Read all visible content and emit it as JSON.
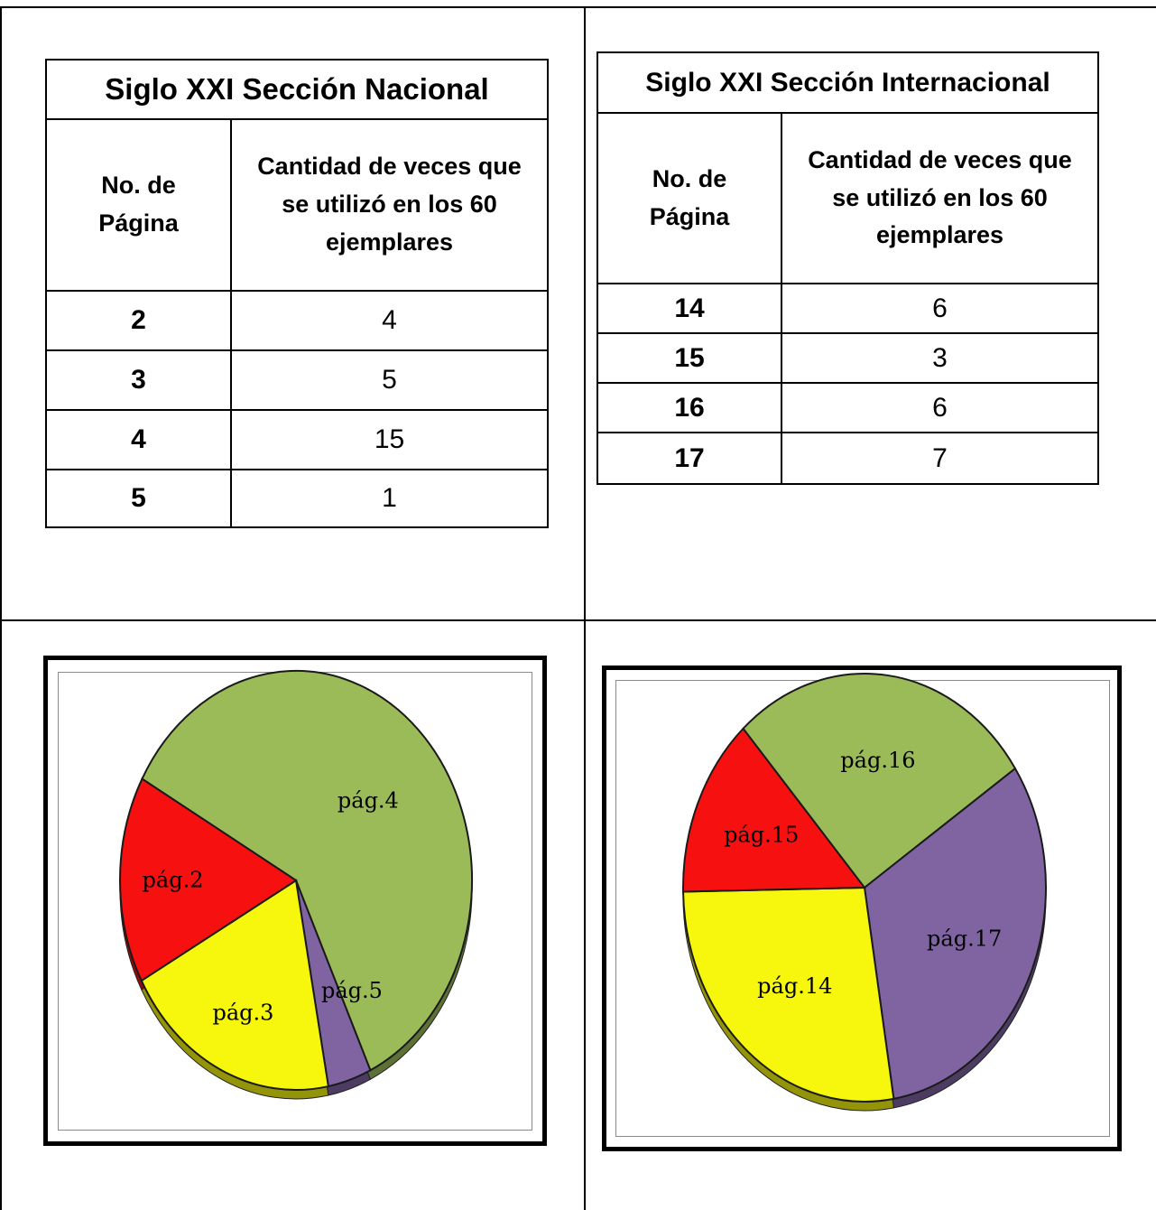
{
  "tables": [
    {
      "title": "Siglo XXI Sección Nacional",
      "col_page": "No. de Página",
      "col_count": "Cantidad de veces que se utilizó en los 60 ejemplares",
      "rows": [
        {
          "page": "2",
          "count": "4"
        },
        {
          "page": "3",
          "count": "5"
        },
        {
          "page": "4",
          "count": "15"
        },
        {
          "page": "5",
          "count": "1"
        }
      ]
    },
    {
      "title": "Siglo XXI Sección Internacional",
      "col_page": "No. de Página",
      "col_count": "Cantidad de veces que se utilizó en los 60 ejemplares",
      "rows": [
        {
          "page": "14",
          "count": "6"
        },
        {
          "page": "15",
          "count": "3"
        },
        {
          "page": "16",
          "count": "6"
        },
        {
          "page": "17",
          "count": "7"
        }
      ]
    }
  ],
  "chart_data": [
    {
      "type": "pie",
      "slices": [
        {
          "label": "pág.4",
          "value": 15,
          "color": "#9bbb59"
        },
        {
          "label": "pág.5",
          "value": 1,
          "color": "#8064a2"
        },
        {
          "label": "pág.3",
          "value": 5,
          "color": "#f7f70e"
        },
        {
          "label": "pág.2",
          "value": 4,
          "color": "#f71010"
        }
      ]
    },
    {
      "type": "pie",
      "slices": [
        {
          "label": "pág.16",
          "value": 6,
          "color": "#9bbb59"
        },
        {
          "label": "pág.17",
          "value": 7,
          "color": "#8064a2"
        },
        {
          "label": "pág.14",
          "value": 6,
          "color": "#f7f70e"
        },
        {
          "label": "pág.15",
          "value": 3,
          "color": "#f71010"
        }
      ]
    }
  ]
}
